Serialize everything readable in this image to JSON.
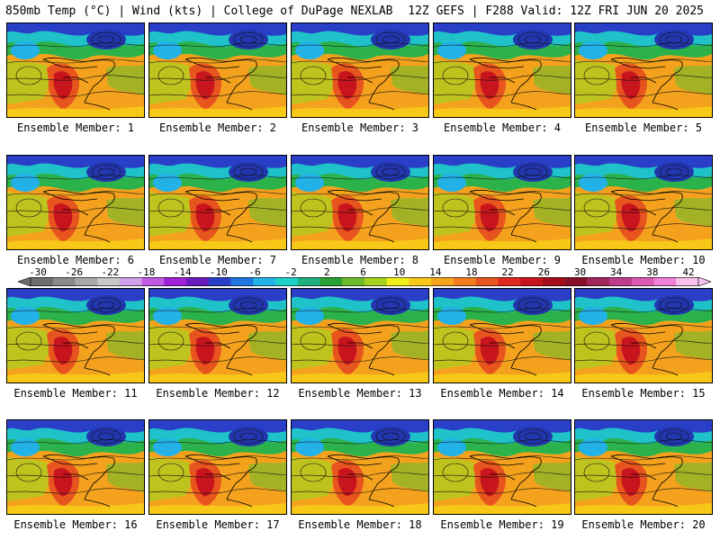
{
  "header": {
    "left": "850mb Temp (°C) | Wind (kts) | College of DuPage NEXLAB",
    "right": "12Z GEFS | F288 Valid: 12Z FRI JUN 20 2025"
  },
  "panel_label_prefix": "Ensemble Member: ",
  "members": [
    1,
    2,
    3,
    4,
    5,
    6,
    7,
    8,
    9,
    10,
    11,
    12,
    13,
    14,
    15,
    16,
    17,
    18,
    19,
    20
  ],
  "colorbar": {
    "ticks": [
      "-30",
      "-26",
      "-22",
      "-18",
      "-14",
      "-10",
      "-6",
      "-2",
      "2",
      "6",
      "10",
      "14",
      "18",
      "22",
      "26",
      "30",
      "34",
      "38",
      "42"
    ],
    "colors": [
      "#6e6e6e",
      "#8a8a8a",
      "#a8a8a8",
      "#c8c8c8",
      "#d2a0ea",
      "#c05ae6",
      "#a021d8",
      "#6a1bbd",
      "#2a3fc8",
      "#1f78e0",
      "#22b2e8",
      "#1fd0c8",
      "#20b080",
      "#28a032",
      "#6cbc2a",
      "#a8d21e",
      "#f4ee1a",
      "#f8c818",
      "#f4a41c",
      "#f07e1e",
      "#e8541e",
      "#de2a1e",
      "#c8141c",
      "#a40e1a",
      "#880e2a",
      "#a0265a",
      "#c03c8a",
      "#dc5ab4",
      "#f080d8",
      "#f8c0ec"
    ]
  }
}
